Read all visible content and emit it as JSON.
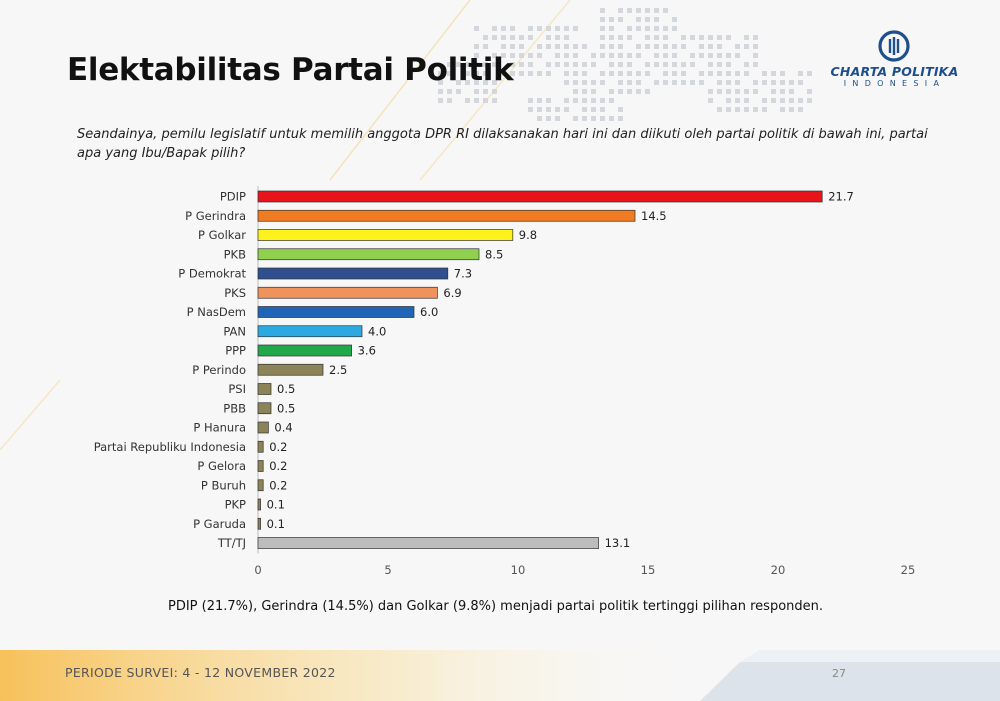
{
  "header": {
    "title": "Elektabilitas Partai Politik",
    "logo_name": "CHARTA POLITIKA",
    "logo_sub": "INDONESIA",
    "question": "Seandainya, pemilu legislatif untuk memilih anggota DPR RI dilaksanakan hari ini dan diikuti oleh partai politik di bawah ini, partai apa yang Ibu/Bapak pilih?"
  },
  "chart_data": {
    "type": "bar",
    "orientation": "horizontal",
    "title": "",
    "xlabel": "",
    "ylabel": "",
    "xlim": [
      0,
      25
    ],
    "xticks": [
      0,
      5,
      10,
      15,
      20,
      25
    ],
    "grid": false,
    "legend": "none",
    "categories": [
      "PDIP",
      "P Gerindra",
      "P Golkar",
      "PKB",
      "P Demokrat",
      "PKS",
      "P NasDem",
      "PAN",
      "PPP",
      "P Perindo",
      "PSI",
      "PBB",
      "P Hanura",
      "Partai Republiku Indonesia",
      "P Gelora",
      "P Buruh",
      "PKP",
      "P Garuda",
      "TT/TJ"
    ],
    "values": [
      21.7,
      14.5,
      9.8,
      8.5,
      7.3,
      6.9,
      6.0,
      4.0,
      3.6,
      2.5,
      0.5,
      0.5,
      0.4,
      0.2,
      0.2,
      0.2,
      0.1,
      0.1,
      13.1
    ],
    "value_labels": [
      "21.7",
      "14.5",
      "9.8",
      "8.5",
      "7.3",
      "6.9",
      "6.0",
      "4.0",
      "3.6",
      "2.5",
      "0.5",
      "0.5",
      "0.4",
      "0.2",
      "0.2",
      "0.2",
      "0.1",
      "0.1",
      "13.1"
    ],
    "colors": [
      "#e8141c",
      "#ef7b22",
      "#fdf21b",
      "#8fd14f",
      "#2f4f8e",
      "#f0925b",
      "#1f64b5",
      "#2da9e1",
      "#20a84b",
      "#8c8358",
      "#8c8358",
      "#8c8358",
      "#8c8358",
      "#8c8358",
      "#8c8358",
      "#8c8358",
      "#8c8358",
      "#8c8358",
      "#bdbdbd"
    ]
  },
  "summary": "PDIP (21.7%), Gerindra (14.5%) dan Golkar (9.8%) menjadi partai politik tertinggi pilihan responden.",
  "footer": {
    "period": "PERIODE SURVEI: 4 - 12 NOVEMBER 2022",
    "page_number": "27"
  }
}
